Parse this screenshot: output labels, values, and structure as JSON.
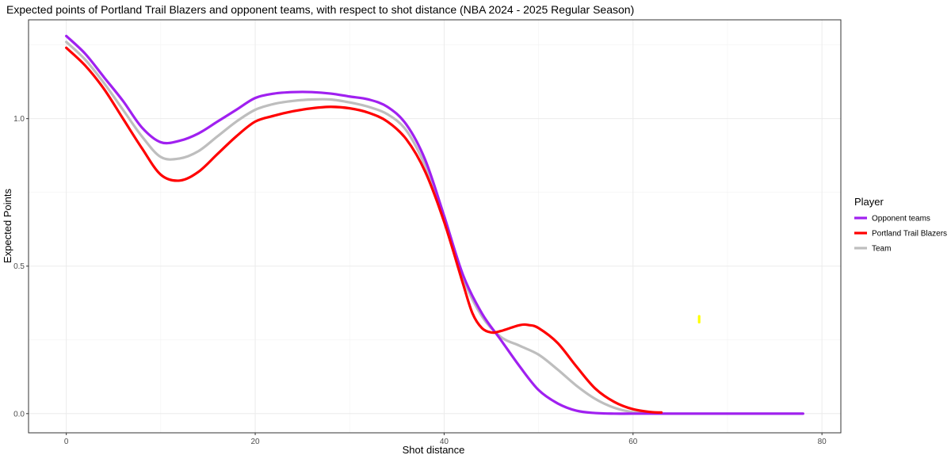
{
  "chart_data": {
    "type": "line",
    "title": "Expected points of Portland Trail Blazers and opponent teams, with respect to shot distance (NBA 2024 - 2025 Regular Season)",
    "xlabel": "Shot distance",
    "ylabel": "Expected Points",
    "xlim": [
      -4,
      82
    ],
    "ylim": [
      -0.065,
      1.335
    ],
    "x_ticks": [
      0,
      20,
      40,
      60,
      80
    ],
    "x_tick_labels": [
      "0",
      "20",
      "40",
      "60",
      "80"
    ],
    "y_ticks": [
      0.0,
      0.5,
      1.0
    ],
    "y_tick_labels": [
      "0.0",
      "0.5",
      "1.0"
    ],
    "grid": true,
    "legend": {
      "title": "Player",
      "position": "right",
      "entries": [
        "Opponent teams",
        "Portland Trail Blazers",
        "Team"
      ]
    },
    "series": [
      {
        "name": "Opponent teams",
        "color": "#a020f0",
        "points": [
          [
            0,
            1.28
          ],
          [
            2,
            1.22
          ],
          [
            4,
            1.14
          ],
          [
            6,
            1.06
          ],
          [
            8,
            0.97
          ],
          [
            10,
            0.92
          ],
          [
            12,
            0.925
          ],
          [
            14,
            0.95
          ],
          [
            16,
            0.99
          ],
          [
            18,
            1.03
          ],
          [
            20,
            1.07
          ],
          [
            22,
            1.085
          ],
          [
            24,
            1.09
          ],
          [
            26,
            1.09
          ],
          [
            28,
            1.085
          ],
          [
            30,
            1.075
          ],
          [
            32,
            1.065
          ],
          [
            34,
            1.04
          ],
          [
            36,
            0.98
          ],
          [
            38,
            0.86
          ],
          [
            40,
            0.67
          ],
          [
            42,
            0.47
          ],
          [
            44,
            0.34
          ],
          [
            46,
            0.25
          ],
          [
            48,
            0.16
          ],
          [
            50,
            0.08
          ],
          [
            52,
            0.035
          ],
          [
            54,
            0.01
          ],
          [
            56,
            0.002
          ],
          [
            58,
            0.0
          ],
          [
            60,
            0.0
          ],
          [
            65,
            0.0
          ],
          [
            70,
            0.0
          ],
          [
            75,
            0.0
          ],
          [
            78,
            0.0
          ]
        ]
      },
      {
        "name": "Portland Trail Blazers",
        "color": "#ff0000",
        "points": [
          [
            0,
            1.24
          ],
          [
            2,
            1.18
          ],
          [
            4,
            1.1
          ],
          [
            6,
            1.0
          ],
          [
            8,
            0.9
          ],
          [
            10,
            0.81
          ],
          [
            12,
            0.79
          ],
          [
            14,
            0.82
          ],
          [
            16,
            0.88
          ],
          [
            18,
            0.94
          ],
          [
            20,
            0.99
          ],
          [
            22,
            1.01
          ],
          [
            24,
            1.025
          ],
          [
            26,
            1.035
          ],
          [
            28,
            1.04
          ],
          [
            30,
            1.035
          ],
          [
            32,
            1.02
          ],
          [
            34,
            0.99
          ],
          [
            36,
            0.93
          ],
          [
            38,
            0.82
          ],
          [
            40,
            0.65
          ],
          [
            42,
            0.44
          ],
          [
            43,
            0.34
          ],
          [
            44,
            0.29
          ],
          [
            45,
            0.275
          ],
          [
            46,
            0.28
          ],
          [
            48,
            0.3
          ],
          [
            49,
            0.3
          ],
          [
            50,
            0.29
          ],
          [
            52,
            0.24
          ],
          [
            54,
            0.16
          ],
          [
            56,
            0.085
          ],
          [
            58,
            0.04
          ],
          [
            60,
            0.015
          ],
          [
            62,
            0.005
          ],
          [
            63,
            0.004
          ]
        ]
      },
      {
        "name": "Team",
        "color": "#bebebe",
        "points": [
          [
            0,
            1.26
          ],
          [
            2,
            1.2
          ],
          [
            4,
            1.12
          ],
          [
            6,
            1.03
          ],
          [
            8,
            0.94
          ],
          [
            10,
            0.87
          ],
          [
            12,
            0.865
          ],
          [
            14,
            0.89
          ],
          [
            16,
            0.94
          ],
          [
            18,
            0.99
          ],
          [
            20,
            1.03
          ],
          [
            22,
            1.05
          ],
          [
            24,
            1.06
          ],
          [
            26,
            1.065
          ],
          [
            28,
            1.065
          ],
          [
            30,
            1.055
          ],
          [
            32,
            1.04
          ],
          [
            34,
            1.015
          ],
          [
            36,
            0.96
          ],
          [
            38,
            0.84
          ],
          [
            40,
            0.67
          ],
          [
            42,
            0.46
          ],
          [
            44,
            0.33
          ],
          [
            46,
            0.26
          ],
          [
            48,
            0.23
          ],
          [
            50,
            0.2
          ],
          [
            52,
            0.15
          ],
          [
            54,
            0.095
          ],
          [
            56,
            0.05
          ],
          [
            58,
            0.02
          ],
          [
            60,
            0.005
          ],
          [
            62,
            0.001
          ],
          [
            65,
            0.0
          ],
          [
            70,
            0.0
          ],
          [
            75,
            0.0
          ],
          [
            78,
            0.0
          ]
        ]
      },
      {
        "color": "#ffff00",
        "points": [
          [
            67,
            0.31
          ],
          [
            67,
            0.33
          ]
        ]
      }
    ]
  }
}
